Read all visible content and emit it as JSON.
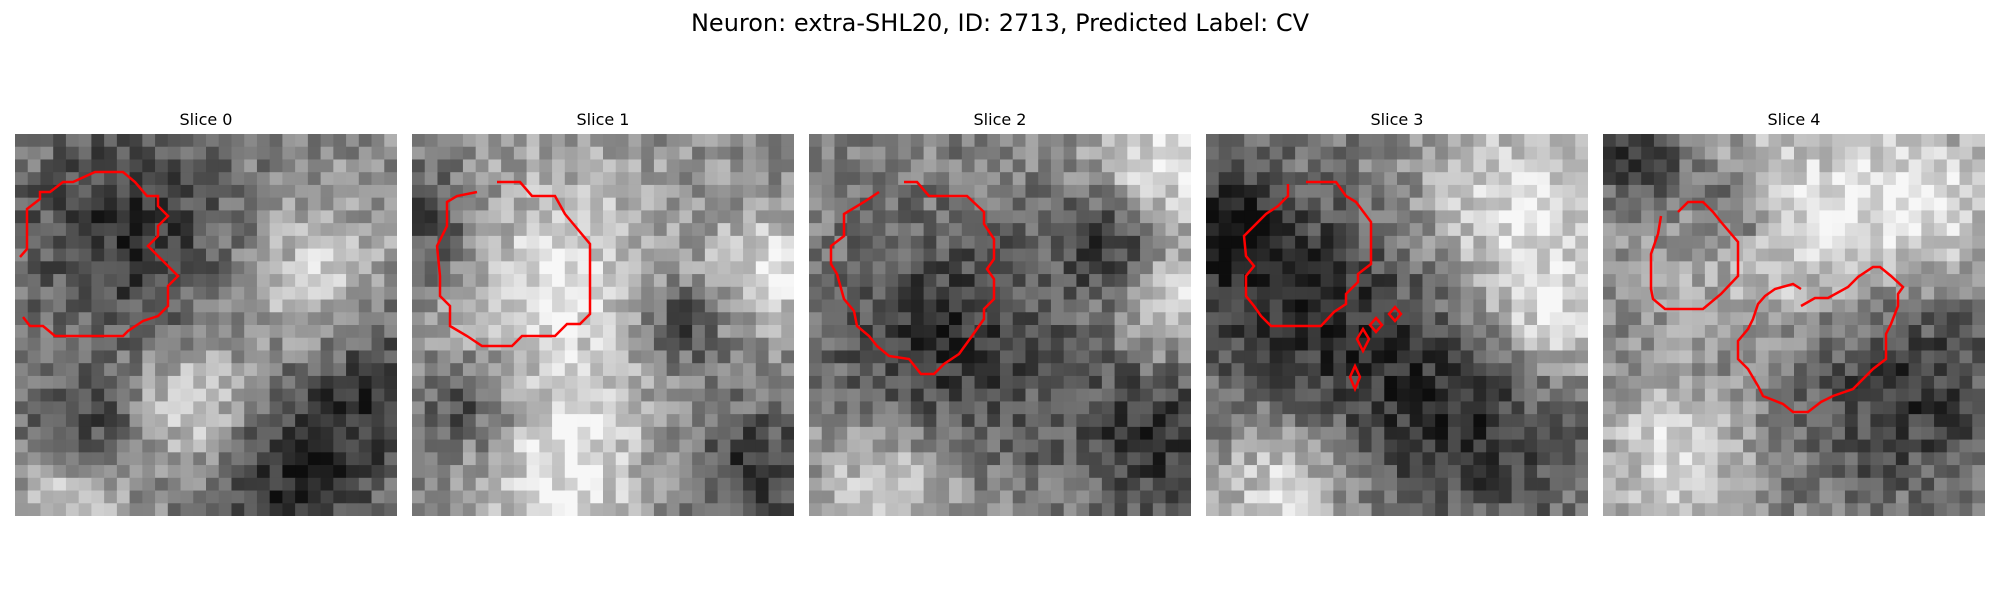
{
  "figure": {
    "title": "Neuron: extra-SHL20, ID: 2713, Predicted Label: CV"
  },
  "panels": [
    {
      "title": "Slice 0",
      "seed": 11,
      "dark_spots": [
        [
          0.3,
          0.25,
          0.22
        ],
        [
          0.95,
          0.65,
          0.18
        ],
        [
          0.2,
          0.78,
          0.12
        ],
        [
          0.7,
          0.92,
          0.15
        ]
      ],
      "light_spots": [
        [
          0.8,
          0.4,
          0.14
        ],
        [
          0.15,
          0.95,
          0.1
        ],
        [
          0.45,
          0.72,
          0.12
        ]
      ],
      "contour_color": "#ff0000"
    },
    {
      "title": "Slice 1",
      "seed": 23,
      "dark_spots": [
        [
          0.05,
          0.25,
          0.12
        ],
        [
          0.15,
          0.7,
          0.1
        ],
        [
          0.7,
          0.5,
          0.08
        ],
        [
          0.9,
          0.88,
          0.12
        ]
      ],
      "light_spots": [
        [
          0.35,
          0.4,
          0.22
        ],
        [
          0.4,
          0.88,
          0.15
        ],
        [
          0.95,
          0.35,
          0.1
        ]
      ],
      "contour_color": "#ff0000"
    },
    {
      "title": "Slice 2",
      "seed": 37,
      "dark_spots": [
        [
          0.35,
          0.55,
          0.25
        ],
        [
          0.92,
          0.8,
          0.16
        ],
        [
          0.8,
          0.28,
          0.1
        ]
      ],
      "light_spots": [
        [
          0.92,
          0.1,
          0.12
        ],
        [
          0.2,
          0.92,
          0.14
        ],
        [
          0.95,
          0.45,
          0.1
        ]
      ],
      "contour_color": "#ff0000"
    },
    {
      "title": "Slice 3",
      "seed": 53,
      "dark_spots": [
        [
          0.25,
          0.45,
          0.25
        ],
        [
          0.7,
          0.75,
          0.22
        ],
        [
          0.05,
          0.25,
          0.1
        ]
      ],
      "light_spots": [
        [
          0.8,
          0.2,
          0.18
        ],
        [
          0.2,
          0.92,
          0.12
        ],
        [
          0.9,
          0.5,
          0.12
        ]
      ],
      "contour_color": "#ff0000"
    },
    {
      "title": "Slice 4",
      "seed": 71,
      "dark_spots": [
        [
          0.78,
          0.65,
          0.22
        ],
        [
          0.35,
          0.2,
          0.08
        ],
        [
          0.1,
          0.05,
          0.1
        ]
      ],
      "light_spots": [
        [
          0.5,
          0.25,
          0.2
        ],
        [
          0.2,
          0.85,
          0.12
        ],
        [
          0.85,
          0.2,
          0.14
        ]
      ],
      "contour_color": "#ff0000"
    }
  ]
}
